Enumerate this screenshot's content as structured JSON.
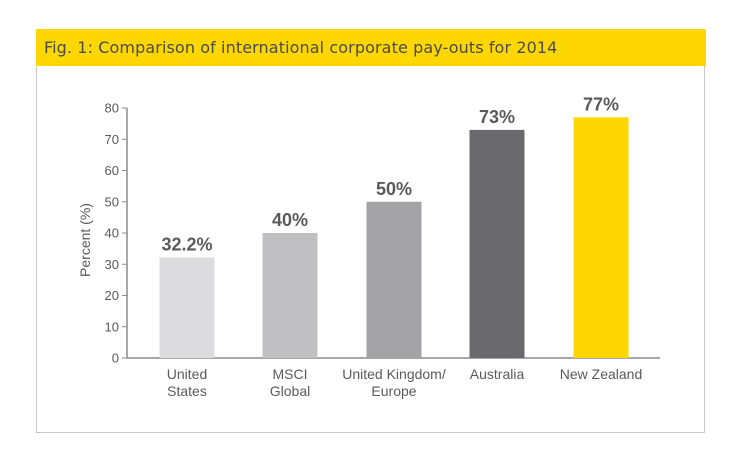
{
  "figure": {
    "title": "Fig. 1: Comparison of international corporate pay-outs for 2014"
  },
  "chart_data": {
    "type": "bar",
    "categories": [
      [
        "United",
        "States"
      ],
      [
        "MSCI",
        "Global"
      ],
      [
        "United Kingdom/",
        "Europe"
      ],
      [
        "Australia"
      ],
      [
        "New Zealand"
      ]
    ],
    "values": [
      32.2,
      40,
      50,
      73,
      77
    ],
    "value_labels": [
      "32.2%",
      "40%",
      "50%",
      "73%",
      "77%"
    ],
    "bar_colors": [
      "#dcdcde",
      "#c0c0c2",
      "#a3a3a6",
      "#6a6a6e",
      "#ffd700"
    ],
    "ylabel": "Percent (%)",
    "xlabel": "",
    "ylim": [
      0,
      80
    ],
    "yticks": [
      0,
      10,
      20,
      30,
      40,
      50,
      60,
      70,
      80
    ],
    "grid": false,
    "legend": "none"
  },
  "colors": {
    "header_background": "#ffd700",
    "title_text": "#4a4a4f",
    "axis": "#8a8a8e",
    "tick_text": "#5a5a5e",
    "value_label_text": "#5a5a5e",
    "frame_border": "#c8c8c8"
  }
}
